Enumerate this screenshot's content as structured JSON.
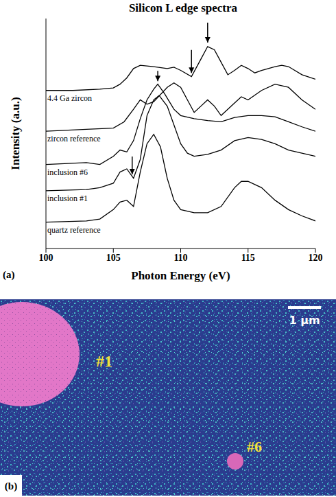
{
  "chart_data": {
    "type": "line",
    "title": "Silicon L edge spectra",
    "panel_label": "(a)",
    "x_label": "Photon Energy (eV)",
    "y_label": "Intensity (a.u.)",
    "xlim": [
      100,
      120
    ],
    "xticks": [
      100,
      105,
      110,
      115,
      120
    ],
    "ylim": [
      0,
      110
    ],
    "tick_labels": "x",
    "grid": false,
    "color": "#000000",
    "series": [
      {
        "name": "4.4 Ga zircon",
        "x": [
          100,
          102,
          104,
          105,
          105.5,
          106,
          106.5,
          107,
          108,
          109,
          109.5,
          110,
          110.8,
          111.5,
          112,
          112.5,
          113,
          113.5,
          114,
          114.5,
          115,
          115.5,
          116,
          117,
          117.5,
          118,
          119,
          120
        ],
        "values": [
          75.6,
          75.6,
          76.2,
          76.8,
          78.6,
          81.6,
          86.1,
          87.6,
          87,
          86.1,
          86.7,
          85.2,
          82.2,
          90.6,
          96.6,
          95.1,
          89.1,
          83.1,
          85.2,
          87.6,
          86.1,
          84,
          85.2,
          87,
          87.6,
          87,
          83.1,
          81
        ]
      },
      {
        "name": "zircon reference",
        "x": [
          100,
          103,
          105,
          105.8,
          106.5,
          107,
          107.5,
          108,
          109,
          109.5,
          110,
          110.5,
          111,
          111.5,
          112,
          112.5,
          113,
          114,
          114.5,
          115,
          116,
          117,
          118,
          119,
          120
        ],
        "values": [
          56.1,
          57,
          57.6,
          60.6,
          66.6,
          71.1,
          69,
          70.2,
          77.1,
          79.2,
          77.1,
          71.1,
          65.1,
          68.1,
          71.1,
          68.1,
          63.6,
          69.6,
          72.6,
          71.1,
          75.6,
          78.6,
          77.1,
          71.1,
          66.6
        ]
      },
      {
        "name": "inclusion #6",
        "x": [
          100,
          103,
          104,
          105,
          105.5,
          106,
          106.5,
          107,
          107.5,
          108,
          108.3,
          108.8,
          109.5,
          110,
          111,
          112,
          113,
          114,
          115,
          116,
          117,
          118,
          119,
          120
        ],
        "values": [
          40.2,
          41.1,
          40.2,
          44.1,
          47.1,
          46.2,
          51.6,
          62.1,
          71.1,
          76.2,
          78.6,
          74.1,
          66.6,
          63.6,
          62.1,
          61.2,
          60.6,
          62.7,
          63.6,
          63.6,
          63,
          60.6,
          58.2,
          56.1
        ]
      },
      {
        "name": "inclusion #1",
        "x": [
          100,
          103,
          104,
          105,
          105.5,
          106,
          106.5,
          107,
          107.5,
          108,
          108.4,
          109,
          109.5,
          110,
          110.5,
          111,
          112,
          113,
          114,
          115,
          116,
          117,
          118,
          120
        ],
        "values": [
          27.6,
          28.2,
          29.1,
          31.2,
          36.6,
          38.1,
          33.6,
          42.6,
          63.6,
          71.1,
          73.2,
          68.1,
          59.1,
          50.1,
          45.6,
          44.1,
          45,
          47.1,
          51.6,
          53.1,
          52.2,
          50.1,
          47.1,
          44.1
        ]
      },
      {
        "name": "quartz reference",
        "x": [
          100,
          103,
          104,
          105,
          105.5,
          106,
          106.5,
          107,
          107.5,
          108,
          108.5,
          109,
          109.5,
          110,
          111,
          112,
          113,
          114,
          114.5,
          115,
          116,
          117,
          118,
          119,
          120
        ],
        "values": [
          12.6,
          13.2,
          14.1,
          18.6,
          22.2,
          23.1,
          20.1,
          36.6,
          50.1,
          54.6,
          48.6,
          33.6,
          23.1,
          18.6,
          17.1,
          17.1,
          20.1,
          29.1,
          32.1,
          32.1,
          29.1,
          23.1,
          18.6,
          15.6,
          13.2
        ]
      }
    ],
    "arrows": [
      {
        "x": 112,
        "from": 108,
        "to": 98.5
      },
      {
        "x": 110.8,
        "from": 95,
        "to": 84
      },
      {
        "x": 108.3,
        "from": 85,
        "to": 80
      },
      {
        "x": 106.4,
        "from": 44,
        "to": 35.5
      }
    ]
  },
  "image": {
    "panel_label": "(b)",
    "labels": [
      "#1",
      "#6"
    ],
    "scale_bar": "1 μm"
  }
}
